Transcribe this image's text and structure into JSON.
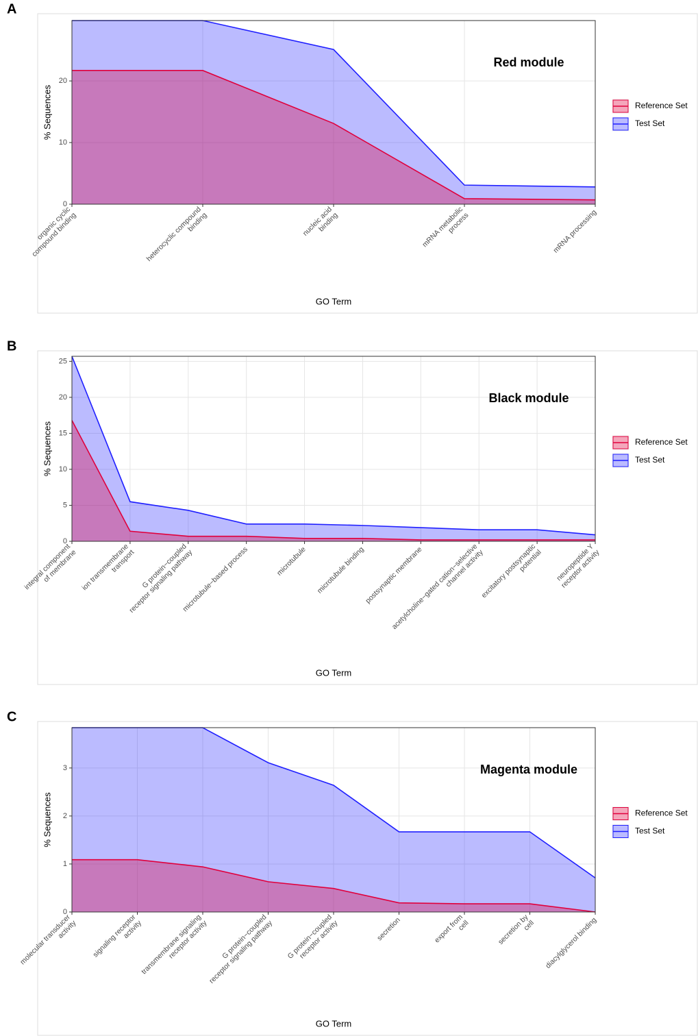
{
  "chart_data": [
    {
      "type": "area",
      "panel": "A",
      "title": "Red module",
      "xlabel": "GO Term",
      "ylabel": "% Sequences",
      "categories": [
        "organic cyclic\ncompound binding",
        "heterocyclic compound\nbinding",
        "nucleic acid\nbinding",
        "mRNA metabolic\nprocess",
        "mRNA processing"
      ],
      "series": [
        {
          "name": "Reference Set",
          "color": "#e0003c",
          "values": [
            21.7,
            21.7,
            13.1,
            0.9,
            0.7
          ]
        },
        {
          "name": "Test Set",
          "color": "#1f1fff",
          "values": [
            29.8,
            29.8,
            25.1,
            3.1,
            2.8
          ]
        }
      ],
      "ylim": [
        0,
        29.8
      ],
      "yticks": [
        0,
        10,
        20
      ],
      "grid": true
    },
    {
      "type": "area",
      "panel": "B",
      "title": "Black module",
      "xlabel": "GO Term",
      "ylabel": "% Sequences",
      "categories": [
        "integral component\nof membrane",
        "ion transmembrane\ntransport",
        "G protein−coupled\nreceptor signaling pathway",
        "microtubule−based process",
        "microtubule",
        "microtubule binding",
        "postsynaptic membrane",
        "acetylcholine−gated cation−selective\nchannel activity",
        "excitatory postsynaptic\npotential",
        "neuropeptide Y\nreceptor activity"
      ],
      "series": [
        {
          "name": "Reference Set",
          "color": "#e0003c",
          "values": [
            16.8,
            1.4,
            0.7,
            0.7,
            0.4,
            0.4,
            0.2,
            0.2,
            0.2,
            0.2
          ]
        },
        {
          "name": "Test Set",
          "color": "#1f1fff",
          "values": [
            25.7,
            5.5,
            4.3,
            2.4,
            2.4,
            2.2,
            1.9,
            1.6,
            1.6,
            0.9
          ]
        }
      ],
      "ylim": [
        0,
        25.7
      ],
      "yticks": [
        0,
        5,
        10,
        15,
        20,
        25
      ],
      "grid": true
    },
    {
      "type": "area",
      "panel": "C",
      "title": "Magenta module",
      "xlabel": "GO Term",
      "ylabel": "% Sequences",
      "categories": [
        "molecular transducer\nactivity",
        "signaling receptor\nactivity",
        "transmembrane signaling\nreceptor activity",
        "G protein−coupled\nreceptor signaling pathway",
        "G protein−coupled\nreceptor activity",
        "secretion",
        "export from\ncell",
        "secretion by\ncell",
        "diacylglycerol binding"
      ],
      "series": [
        {
          "name": "Reference Set",
          "color": "#e0003c",
          "values": [
            1.09,
            1.09,
            0.94,
            0.63,
            0.49,
            0.19,
            0.17,
            0.17,
            0
          ]
        },
        {
          "name": "Test Set",
          "color": "#1f1fff",
          "values": [
            3.84,
            3.84,
            3.84,
            3.11,
            2.64,
            1.67,
            1.67,
            1.67,
            0.71
          ]
        }
      ],
      "ylim": [
        0,
        3.84
      ],
      "yticks": [
        0,
        1,
        2,
        3
      ],
      "grid": true
    }
  ]
}
